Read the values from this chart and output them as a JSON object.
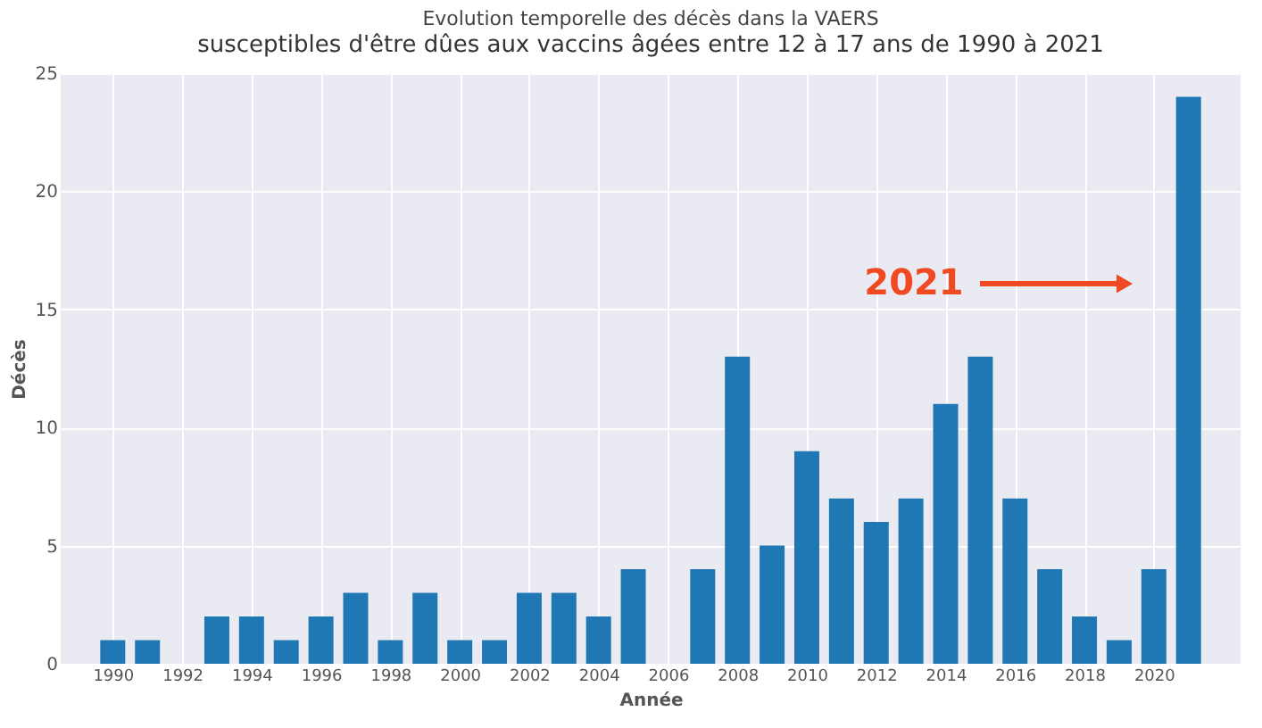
{
  "chart_data": {
    "type": "bar",
    "title": "Evolution temporelle des décès dans la VAERS",
    "subtitle": "susceptibles d'être dûes aux vaccins âgées entre 12 à 17 ans de 1990 à 2021",
    "xlabel": "Année",
    "ylabel": "Décès",
    "x": [
      1990,
      1991,
      1992,
      1993,
      1994,
      1995,
      1996,
      1997,
      1998,
      1999,
      2000,
      2001,
      2002,
      2003,
      2004,
      2005,
      2006,
      2007,
      2008,
      2009,
      2010,
      2011,
      2012,
      2013,
      2014,
      2015,
      2016,
      2017,
      2018,
      2019,
      2020,
      2021
    ],
    "values": [
      1,
      1,
      0,
      2,
      2,
      1,
      2,
      3,
      1,
      3,
      1,
      1,
      3,
      3,
      2,
      4,
      0,
      4,
      13,
      5,
      9,
      7,
      6,
      7,
      11,
      13,
      7,
      4,
      2,
      1,
      4,
      24
    ],
    "color": "#1f77b4",
    "xlim": [
      1988.5,
      2022.5
    ],
    "xticks": [
      1990,
      1992,
      1994,
      1996,
      1998,
      2000,
      2002,
      2004,
      2006,
      2008,
      2010,
      2012,
      2014,
      2016,
      2018,
      2020
    ],
    "ylim": [
      0,
      25
    ],
    "yticks": [
      0,
      5,
      10,
      15,
      20,
      25
    ],
    "grid": true,
    "annotations": [
      "2021"
    ]
  }
}
